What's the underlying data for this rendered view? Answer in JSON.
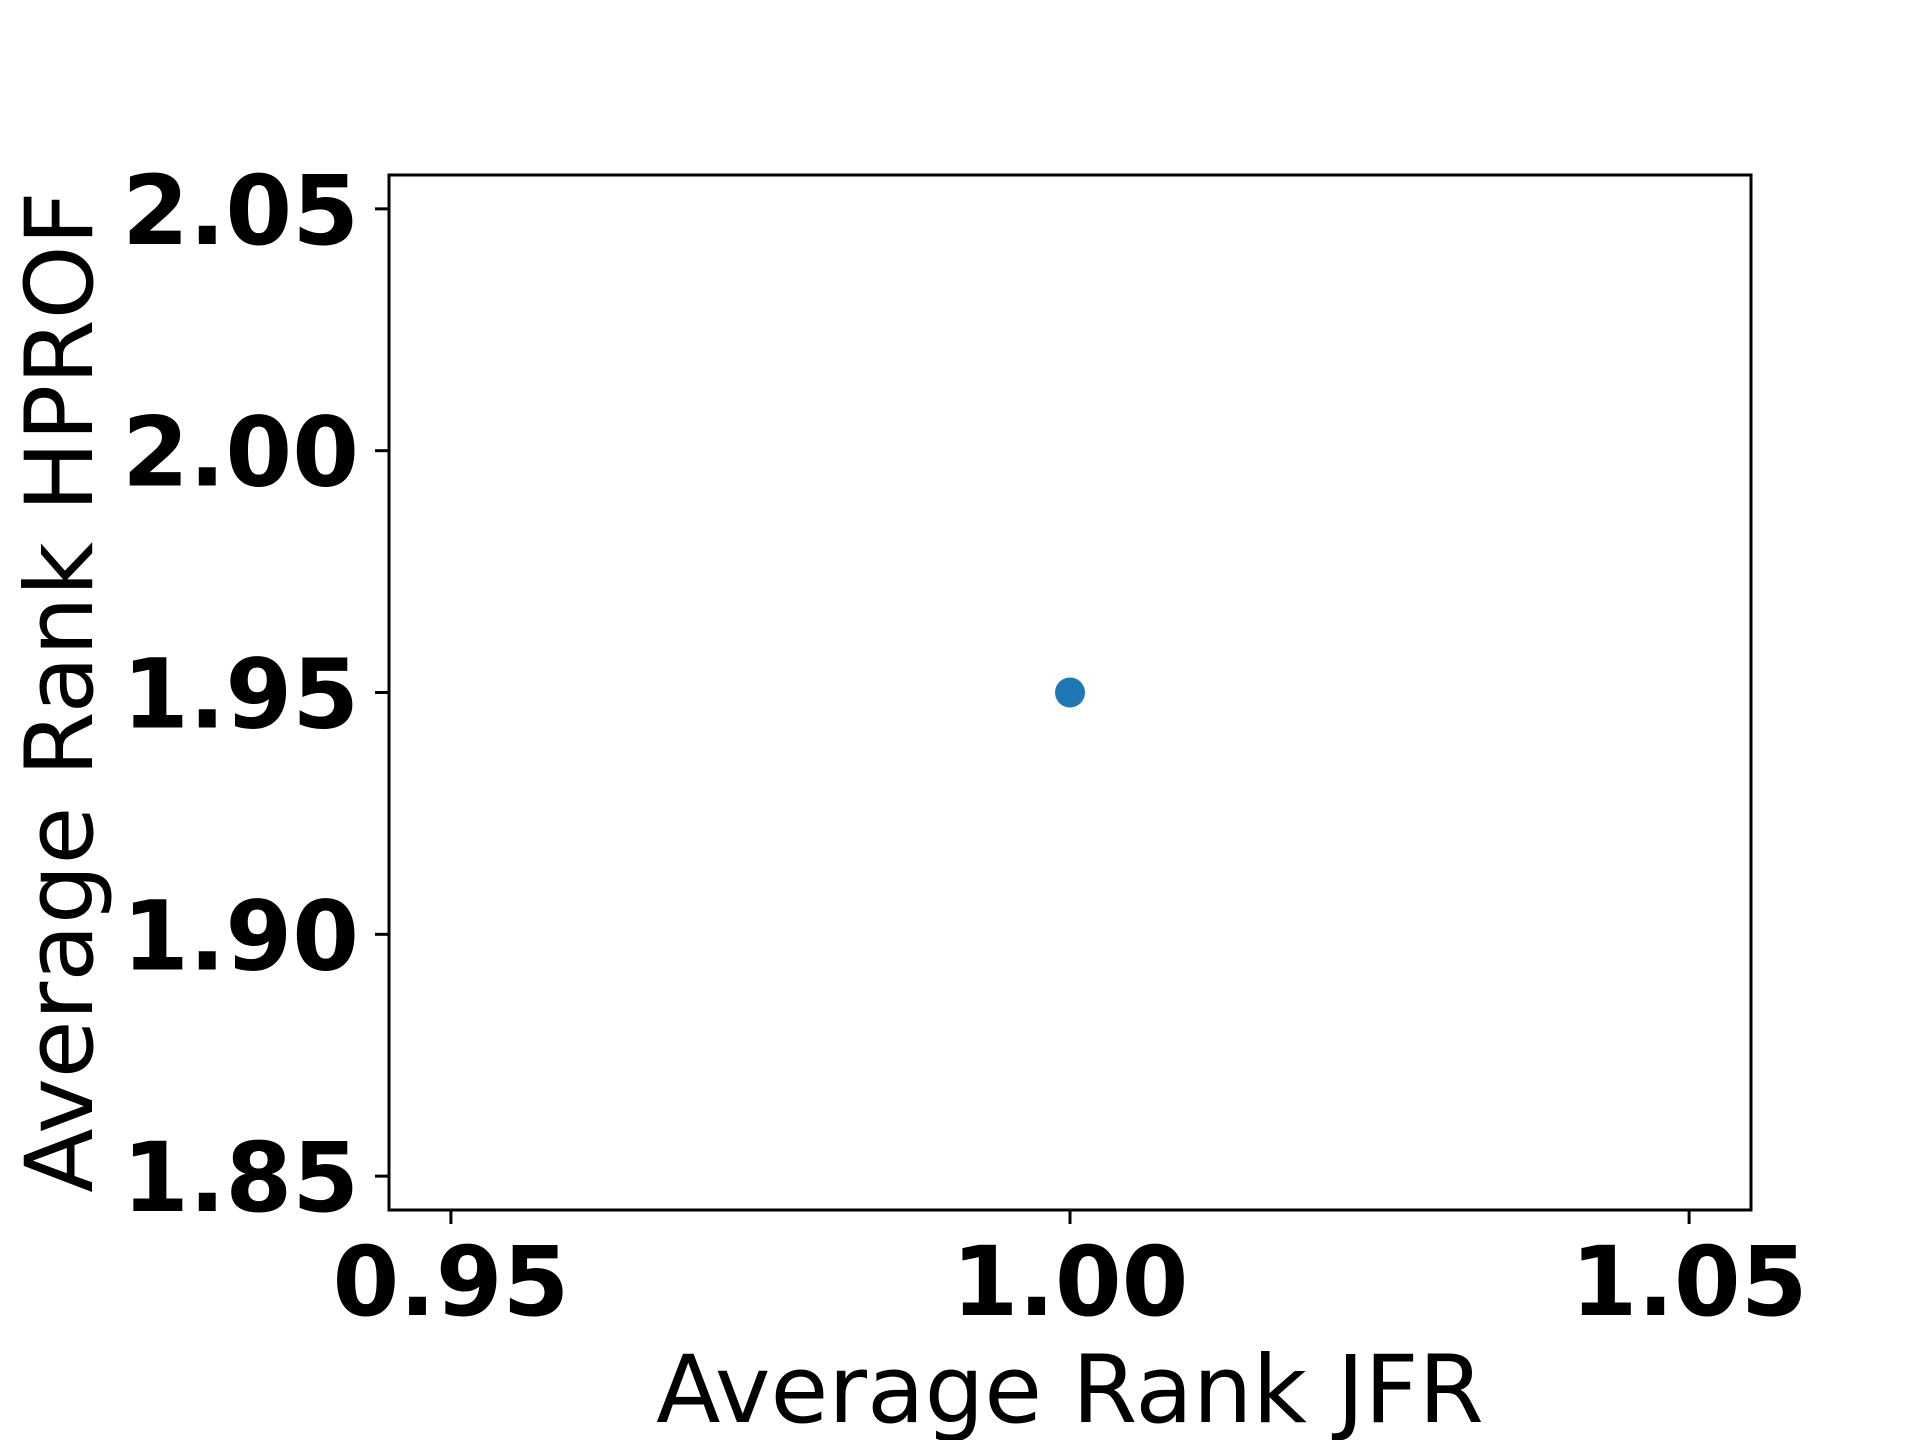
{
  "chart_data": {
    "type": "scatter",
    "title": "",
    "xlabel": "Average Rank JFR",
    "ylabel": "Average Rank HPROF",
    "xlim": [
      0.945,
      1.055
    ],
    "ylim": [
      1.843,
      2.057
    ],
    "x_ticks": [
      {
        "value": 0.95,
        "label": "0.95"
      },
      {
        "value": 1.0,
        "label": "1.00"
      },
      {
        "value": 1.05,
        "label": "1.05"
      }
    ],
    "y_ticks": [
      {
        "value": 1.85,
        "label": "1.85"
      },
      {
        "value": 1.9,
        "label": "1.90"
      },
      {
        "value": 1.95,
        "label": "1.95"
      },
      {
        "value": 2.0,
        "label": "2.00"
      },
      {
        "value": 2.05,
        "label": "2.05"
      }
    ],
    "grid": false,
    "legend": false,
    "series": [
      {
        "color": "#1f77b4",
        "points": [
          {
            "x": 1.0,
            "y": 1.95
          }
        ]
      }
    ]
  }
}
